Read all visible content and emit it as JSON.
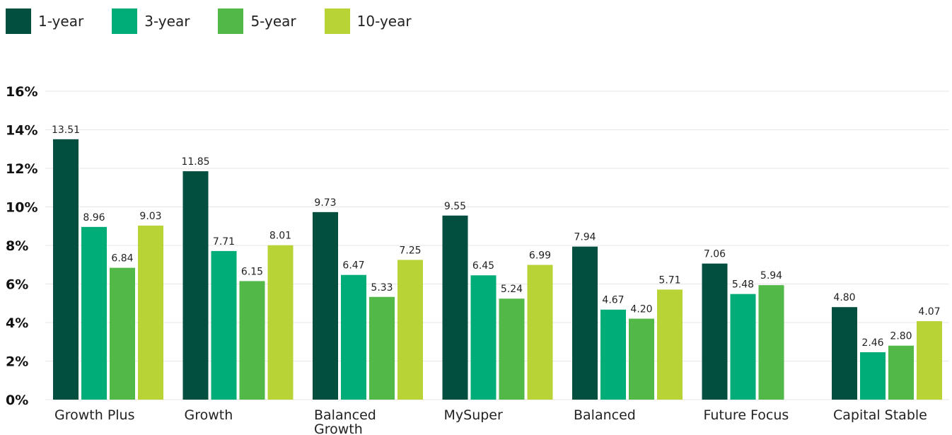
{
  "chart_data": {
    "type": "bar",
    "categories": [
      "Growth Plus",
      "Growth",
      "Balanced Growth",
      "MySuper",
      "Balanced",
      "Future Focus",
      "Capital Stable"
    ],
    "series": [
      {
        "name": "1-year",
        "color": "#034f3f",
        "values": [
          13.51,
          11.85,
          9.73,
          9.55,
          7.94,
          7.06,
          4.8
        ]
      },
      {
        "name": "3-year",
        "color": "#00ad78",
        "values": [
          8.96,
          7.71,
          6.47,
          6.45,
          4.67,
          5.48,
          2.46
        ]
      },
      {
        "name": "5-year",
        "color": "#52b848",
        "values": [
          6.84,
          6.15,
          5.33,
          5.24,
          4.2,
          5.94,
          2.8
        ]
      },
      {
        "name": "10-year",
        "color": "#b8d335",
        "values": [
          9.03,
          8.01,
          7.25,
          6.99,
          5.71,
          null,
          4.07
        ]
      }
    ],
    "data_labels": [
      [
        "13.51",
        "11.85",
        "9.73",
        "9.55",
        "7.94",
        "7.06",
        "4.80"
      ],
      [
        "8.96",
        "7.71",
        "6.47",
        "6.45",
        "4.67",
        "5.48",
        "2.46"
      ],
      [
        "6.84",
        "6.15",
        "5.33",
        "5.24",
        "4.20",
        "5.94",
        "2.80"
      ],
      [
        "9.03",
        "8.01",
        "7.25",
        "6.99",
        "5.71",
        "",
        "4.07"
      ]
    ],
    "y_ticks": [
      0,
      2,
      4,
      6,
      8,
      10,
      12,
      14,
      16
    ],
    "y_tick_labels": [
      "0%",
      "2%",
      "4%",
      "6%",
      "8%",
      "10%",
      "12%",
      "14%",
      "16%"
    ],
    "ylim": [
      0,
      16
    ],
    "grid": true,
    "legend_position": "top-left",
    "title": "",
    "xlabel": "",
    "ylabel": ""
  }
}
